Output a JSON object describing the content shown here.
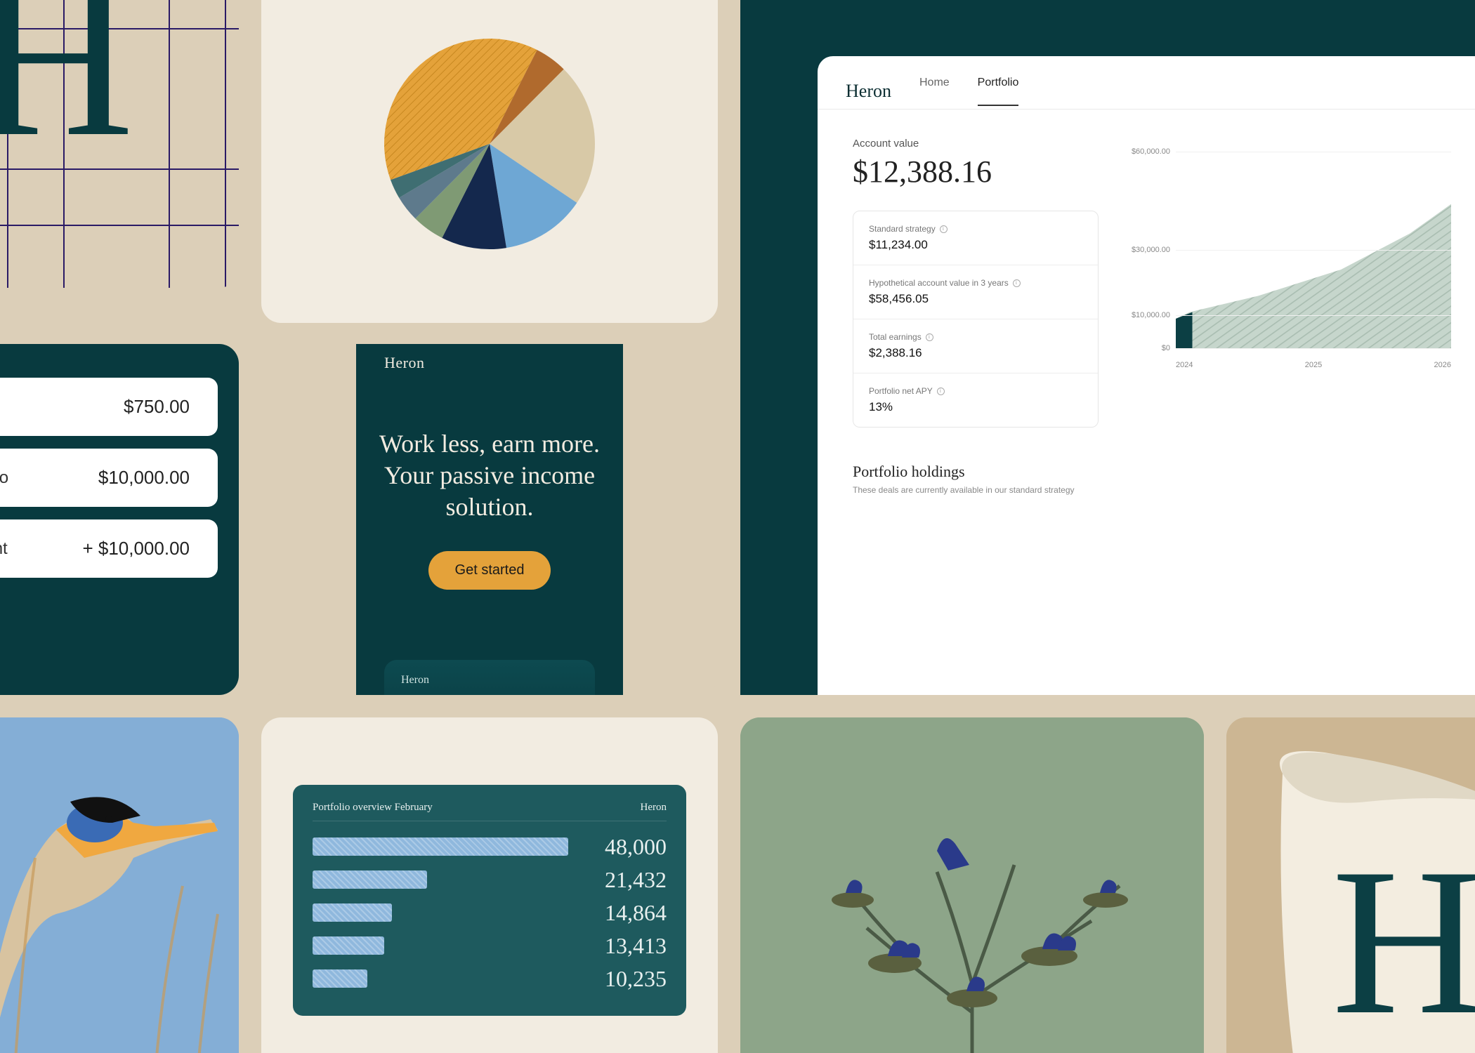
{
  "brand": "Heron",
  "colors": {
    "bg": "#dccfb8",
    "cream": "#f2ece1",
    "teal_dark": "#083a3f",
    "teal_mid": "#1e5a5e",
    "navy": "#14284d",
    "gold": "#e4a23a",
    "sage": "#8da589",
    "tan": "#ccb693",
    "sky": "#84aed6"
  },
  "pie": {
    "type": "pie",
    "background_color": "#f2ece1",
    "radius": 150,
    "slices": [
      {
        "label": "gold-hatched",
        "value": 38,
        "color": "#e4a23a",
        "hatched": true
      },
      {
        "label": "rust",
        "value": 5,
        "color": "#b06a2d",
        "hatched": false
      },
      {
        "label": "beige",
        "value": 22,
        "color": "#d8c9a7",
        "hatched": false
      },
      {
        "label": "sky",
        "value": 13,
        "color": "#6ea7d4",
        "hatched": false
      },
      {
        "label": "navy",
        "value": 10,
        "color": "#14284d",
        "hatched": false
      },
      {
        "label": "sage",
        "value": 5,
        "color": "#7f9a74",
        "hatched": false
      },
      {
        "label": "slate",
        "value": 4,
        "color": "#5e7a8c",
        "hatched": false
      },
      {
        "label": "teal",
        "value": 3,
        "color": "#3f6e72",
        "hatched": false
      }
    ]
  },
  "money_rows": [
    {
      "label": "",
      "value": "$750.00"
    },
    {
      "label": "ortfolio",
      "value": "$10,000.00"
    },
    {
      "label": "ccount",
      "value": "+ $10,000.00"
    }
  ],
  "hero": {
    "headline": "Work less, earn more. Your passive income solution.",
    "cta": "Get started",
    "inner_label": "Heron"
  },
  "dashboard": {
    "nav": {
      "brand": "Heron",
      "tabs": [
        "Home",
        "Portfolio"
      ],
      "active": "Portfolio"
    },
    "account_label": "Account value",
    "account_value": "$12,388.16",
    "stats": [
      {
        "label": "Standard strategy",
        "value": "$11,234.00"
      },
      {
        "label": "Hypothetical account value in 3 years",
        "value": "$58,456.05"
      },
      {
        "label": "Total earnings",
        "value": "$2,388.16"
      },
      {
        "label": "Portfolio net APY",
        "value": "13%"
      }
    ],
    "chart": {
      "type": "area",
      "ylim": [
        0,
        60000
      ],
      "yticks": [
        {
          "v": 60000,
          "label": "$60,000.00"
        },
        {
          "v": 30000,
          "label": "$30,000.00"
        },
        {
          "v": 10000,
          "label": "$10,000.00"
        },
        {
          "v": 0,
          "label": "$0"
        }
      ],
      "xticks": [
        "2024",
        "2025",
        "2026"
      ],
      "series": [
        {
          "x": 0.0,
          "y": 9000
        },
        {
          "x": 0.05,
          "y": 11000
        },
        {
          "x": 0.3,
          "y": 16000
        },
        {
          "x": 0.6,
          "y": 24000
        },
        {
          "x": 0.85,
          "y": 35000
        },
        {
          "x": 1.0,
          "y": 44000
        }
      ],
      "fill_color": "#c6d6cc",
      "solid_color": "#0c3f44",
      "solid_until_x": 0.06,
      "grid_color": "#f0f0f0"
    },
    "holdings_title": "Portfolio holdings",
    "holdings_sub": "These deals are currently available in our standard strategy"
  },
  "bars": {
    "type": "bar-horizontal",
    "title": "Portfolio overview February",
    "brand": "Heron",
    "background_color": "#1e5a5e",
    "bar_fill": "#8fb8dd",
    "bar_hatch": true,
    "max": 48000,
    "rows": [
      {
        "value": 48000,
        "label": "48,000"
      },
      {
        "value": 21432,
        "label": "21,432"
      },
      {
        "value": 14864,
        "label": "14,864"
      },
      {
        "value": 13413,
        "label": "13,413"
      },
      {
        "value": 10235,
        "label": "10,235"
      }
    ]
  },
  "logo_letter": "H"
}
